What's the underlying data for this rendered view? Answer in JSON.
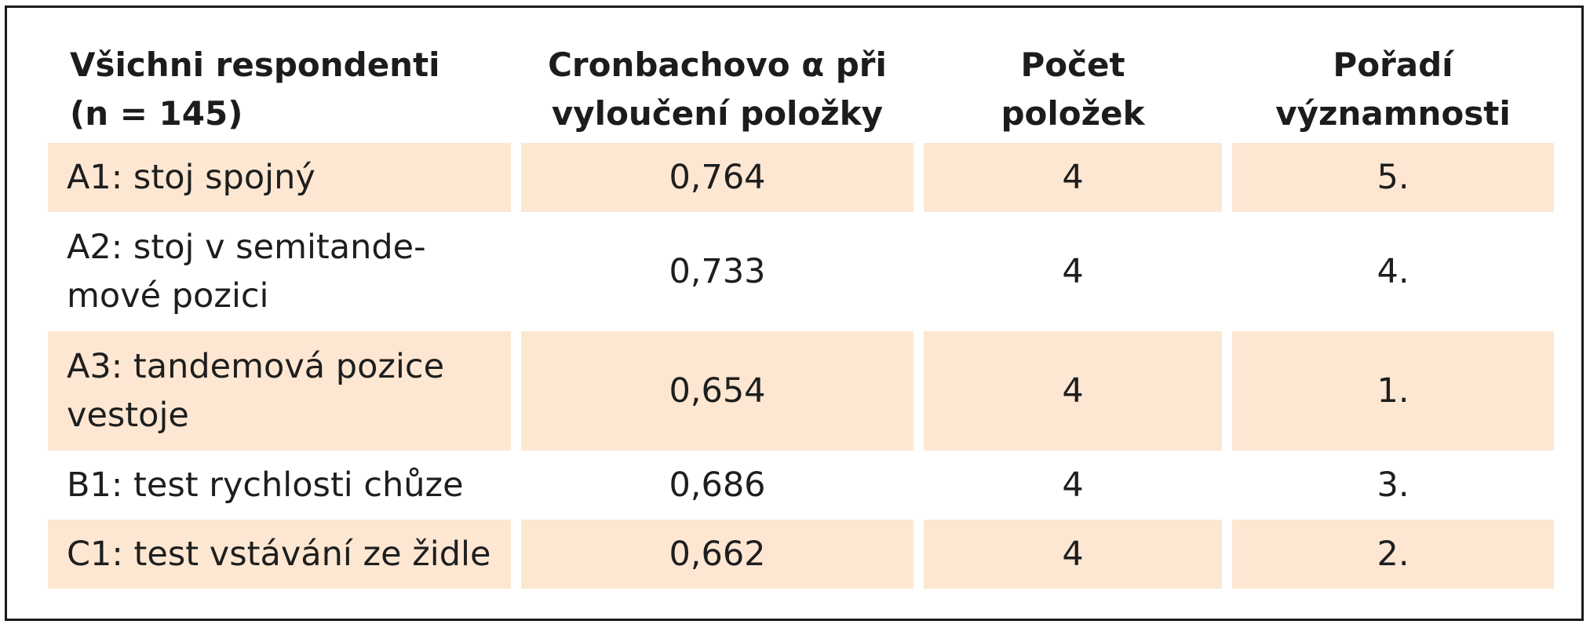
{
  "table": {
    "headers": [
      "Všichni respondenti\n(n = 145)",
      "Cronbachovo α při\nvyloučení položky",
      "Počet\npoložek",
      "Pořadí\nvýznamnosti"
    ],
    "rows": [
      {
        "item": "A1: stoj spojný",
        "alpha": "0,764",
        "count": "4",
        "rank": "5.",
        "shaded": true
      },
      {
        "item": "A2: stoj v semitande-\nmové pozici",
        "alpha": "0,733",
        "count": "4",
        "rank": "4.",
        "shaded": false
      },
      {
        "item": "A3: tandemová pozice\nvestoje",
        "alpha": "0,654",
        "count": "4",
        "rank": "1.",
        "shaded": true
      },
      {
        "item": "B1: test rychlosti chůze",
        "alpha": "0,686",
        "count": "4",
        "rank": "3.",
        "shaded": false
      },
      {
        "item": "C1: test vstávání ze židle",
        "alpha": "0,662",
        "count": "4",
        "rank": "2.",
        "shaded": true
      }
    ],
    "colors": {
      "row_shade": "#fde7d2",
      "border": "#1a1a1a",
      "text": "#1e1e1e"
    }
  }
}
